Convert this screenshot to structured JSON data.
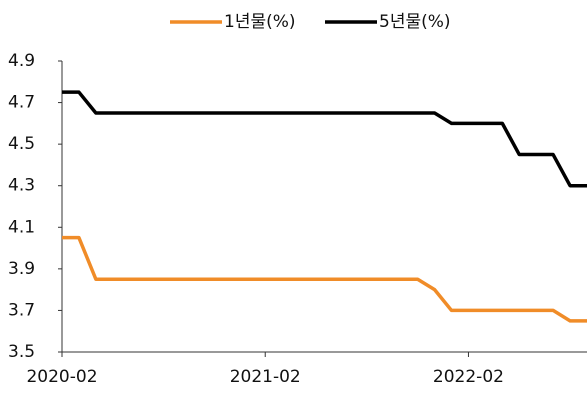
{
  "chart_data": {
    "type": "line",
    "categories": [
      "2020-02",
      null,
      null,
      null,
      null,
      null,
      null,
      null,
      null,
      null,
      null,
      null,
      "2021-02",
      null,
      null,
      null,
      null,
      null,
      null,
      null,
      null,
      null,
      null,
      null,
      "2022-02",
      null,
      null,
      null,
      null,
      null,
      null,
      null
    ],
    "series": [
      {
        "name": "1년물(%)",
        "color": "#f08c28",
        "values": [
          4.05,
          4.05,
          3.85,
          3.85,
          3.85,
          3.85,
          3.85,
          3.85,
          3.85,
          3.85,
          3.85,
          3.85,
          3.85,
          3.85,
          3.85,
          3.85,
          3.85,
          3.85,
          3.85,
          3.85,
          3.85,
          3.85,
          3.8,
          3.7,
          3.7,
          3.7,
          3.7,
          3.7,
          3.7,
          3.7,
          3.65,
          3.65
        ]
      },
      {
        "name": "5년물(%)",
        "color": "#000000",
        "values": [
          4.75,
          4.75,
          4.65,
          4.65,
          4.65,
          4.65,
          4.65,
          4.65,
          4.65,
          4.65,
          4.65,
          4.65,
          4.65,
          4.65,
          4.65,
          4.65,
          4.65,
          4.65,
          4.65,
          4.65,
          4.65,
          4.65,
          4.65,
          4.6,
          4.6,
          4.6,
          4.6,
          4.45,
          4.45,
          4.45,
          4.3,
          4.3
        ]
      }
    ],
    "ylim": [
      3.5,
      4.9
    ],
    "yticks": [
      3.5,
      3.7,
      3.9,
      4.1,
      4.3,
      4.5,
      4.7,
      4.9
    ],
    "legend": "top",
    "grid": false
  }
}
